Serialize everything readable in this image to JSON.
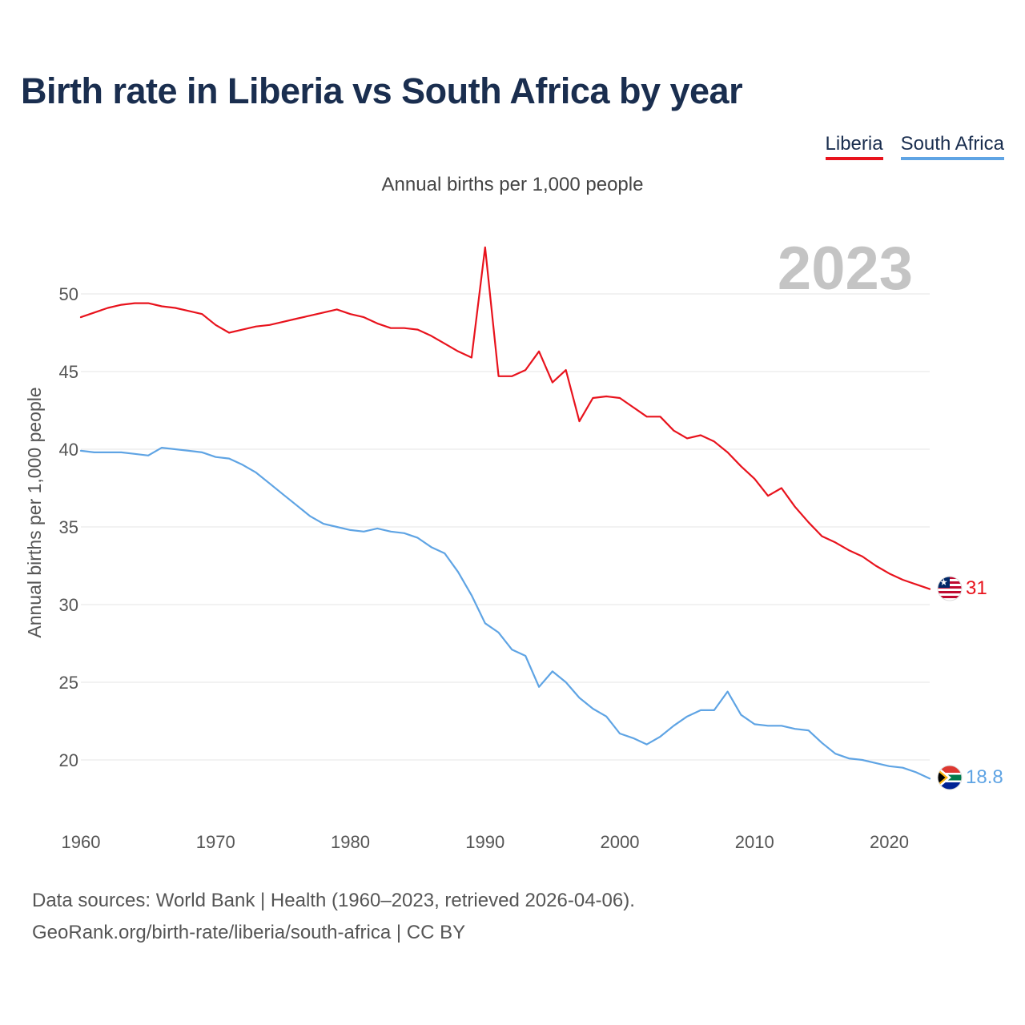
{
  "title": "Birth rate in Liberia vs South Africa by year",
  "subtitle": "Annual births per 1,000 people",
  "footer": {
    "sources": "Data sources: World Bank | Health (1960–2023, retrieved 2026-04-06).",
    "credit": "GeoRank.org/birth-rate/liberia/south-africa | CC BY"
  },
  "colors": {
    "liberia": "#e8131d",
    "south_africa": "#5fa4e4",
    "title": "#1a2e4f"
  },
  "chart_data": {
    "type": "line",
    "title": "Birth rate in Liberia vs South Africa by year",
    "ylabel": "Annual births per 1,000 people",
    "xlabel": "",
    "year_label": "2023",
    "xlim": [
      1960,
      2023
    ],
    "ylim": [
      17,
      53.5
    ],
    "x_ticks": [
      1960,
      1970,
      1980,
      1990,
      2000,
      2010,
      2020
    ],
    "y_ticks": [
      20,
      25,
      30,
      35,
      40,
      45,
      50
    ],
    "grid": true,
    "legend_position": "top-right",
    "x": [
      1960,
      1961,
      1962,
      1963,
      1964,
      1965,
      1966,
      1967,
      1968,
      1969,
      1970,
      1971,
      1972,
      1973,
      1974,
      1975,
      1976,
      1977,
      1978,
      1979,
      1980,
      1981,
      1982,
      1983,
      1984,
      1985,
      1986,
      1987,
      1988,
      1989,
      1990,
      1991,
      1992,
      1993,
      1994,
      1995,
      1996,
      1997,
      1998,
      1999,
      2000,
      2001,
      2002,
      2003,
      2004,
      2005,
      2006,
      2007,
      2008,
      2009,
      2010,
      2011,
      2012,
      2013,
      2014,
      2015,
      2016,
      2017,
      2018,
      2019,
      2020,
      2021,
      2022,
      2023
    ],
    "series": [
      {
        "name": "Liberia",
        "color": "#e8131d",
        "end_label": "31",
        "values": [
          48.5,
          48.8,
          49.1,
          49.3,
          49.4,
          49.4,
          49.2,
          49.1,
          48.9,
          48.7,
          48.0,
          47.5,
          47.7,
          47.9,
          48.0,
          48.2,
          48.4,
          48.6,
          48.8,
          49.0,
          48.7,
          48.5,
          48.1,
          47.8,
          47.8,
          47.7,
          47.3,
          46.8,
          46.3,
          45.9,
          53.0,
          44.7,
          44.7,
          45.1,
          46.3,
          44.3,
          45.1,
          41.8,
          43.3,
          43.4,
          43.3,
          42.7,
          42.1,
          42.1,
          41.2,
          40.7,
          40.9,
          40.5,
          39.8,
          38.9,
          38.1,
          37.0,
          37.5,
          36.3,
          35.3,
          34.4,
          34.0,
          33.5,
          33.1,
          32.5,
          32.0,
          31.6,
          31.3,
          31.0
        ]
      },
      {
        "name": "South Africa",
        "color": "#5fa4e4",
        "end_label": "18.8",
        "values": [
          39.9,
          39.8,
          39.8,
          39.8,
          39.7,
          39.6,
          40.1,
          40.0,
          39.9,
          39.8,
          39.5,
          39.4,
          39.0,
          38.5,
          37.8,
          37.1,
          36.4,
          35.7,
          35.2,
          35.0,
          34.8,
          34.7,
          34.9,
          34.7,
          34.6,
          34.3,
          33.7,
          33.3,
          32.1,
          30.6,
          28.8,
          28.2,
          27.1,
          26.7,
          24.7,
          25.7,
          25.0,
          24.0,
          23.3,
          22.8,
          21.7,
          21.4,
          21.0,
          21.5,
          22.2,
          22.8,
          23.2,
          23.2,
          24.4,
          22.9,
          22.3,
          22.2,
          22.2,
          22.0,
          21.9,
          21.1,
          20.4,
          20.1,
          20.0,
          19.8,
          19.6,
          19.5,
          19.2,
          18.8
        ]
      }
    ]
  }
}
